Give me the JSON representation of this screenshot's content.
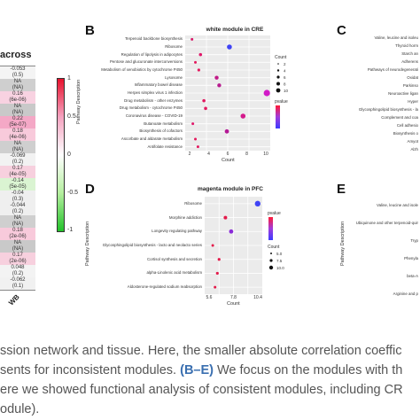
{
  "heatmap": {
    "title_fragment": "across",
    "column_label": "WB",
    "cells": [
      {
        "v": "-0.053",
        "c": "#f4f4f4"
      },
      {
        "v": "(0.5)",
        "c": "#f4f4f4"
      },
      {
        "v": "NA",
        "c": "#cfcfcf"
      },
      {
        "v": "(NA)",
        "c": "#cfcfcf"
      },
      {
        "v": "0.16",
        "c": "#f8d2e1"
      },
      {
        "v": "(6e-06)",
        "c": "#f8d2e1"
      },
      {
        "v": "NA",
        "c": "#c9c9c9"
      },
      {
        "v": "(NA)",
        "c": "#c9c9c9"
      },
      {
        "v": "0.22",
        "c": "#f4a8c6"
      },
      {
        "v": "(5e-07)",
        "c": "#f4a8c6"
      },
      {
        "v": "0.18",
        "c": "#f8cadb"
      },
      {
        "v": "(4e-06)",
        "c": "#f8cadb"
      },
      {
        "v": "NA",
        "c": "#cfcfcf"
      },
      {
        "v": "(NA)",
        "c": "#cfcfcf"
      },
      {
        "v": "-0.069",
        "c": "#f2f2f2"
      },
      {
        "v": "(0.2)",
        "c": "#f2f2f2"
      },
      {
        "v": "0.17",
        "c": "#f7d0de"
      },
      {
        "v": "(4e-05)",
        "c": "#f7d0de"
      },
      {
        "v": "-0.14",
        "c": "#daf4d2"
      },
      {
        "v": "(5e-05)",
        "c": "#daf4d2"
      },
      {
        "v": "-0.04",
        "c": "#efefef"
      },
      {
        "v": "(0.3)",
        "c": "#efefef"
      },
      {
        "v": "-0.044",
        "c": "#efefef"
      },
      {
        "v": "(0.2)",
        "c": "#efefef"
      },
      {
        "v": "NA",
        "c": "#cfcfcf"
      },
      {
        "v": "(NA)",
        "c": "#cfcfcf"
      },
      {
        "v": "0.18",
        "c": "#f8cadb"
      },
      {
        "v": "(2e-06)",
        "c": "#f8cadb"
      },
      {
        "v": "NA",
        "c": "#c9c9c9"
      },
      {
        "v": "(NA)",
        "c": "#c9c9c9"
      },
      {
        "v": "0.17",
        "c": "#f7d0de"
      },
      {
        "v": "(2e-06)",
        "c": "#f7d0de"
      },
      {
        "v": "0.048",
        "c": "#f3f3f3"
      },
      {
        "v": "(0.2)",
        "c": "#f3f3f3"
      },
      {
        "v": "-0.062",
        "c": "#f1f1f1"
      },
      {
        "v": "(0.1)",
        "c": "#f1f1f1"
      }
    ],
    "legend_ticks": [
      "1",
      "0.5",
      "0",
      "-0.5",
      "-1"
    ]
  },
  "panels": {
    "B": "B",
    "C": "C",
    "D": "D",
    "E": "E"
  },
  "panel_b": {
    "title": "white module in CRE",
    "ylabel": "Pathway Description",
    "xlabel": "Count",
    "pathways": [
      "Terpenoid backbone biosynthesis",
      "Ribosome",
      "Regulation of lipolysis in adipocytes",
      "Pentose and glucuronate interconversions",
      "Metabolism of xenobiotics by cytochrome P450",
      "Lysosome",
      "Inflammatory bowel disease",
      "Herpes simplex virus 1 infection",
      "Drug metabolism - other enzymes",
      "Drug metabolism - cytochrome P450",
      "Coronavirus disease - COVID-19",
      "Butanoate metabolism",
      "Biosynthesis of cofactors",
      "Ascorbate and aldarate metabolism",
      "Antifolate resistance"
    ],
    "xticks": [
      "2",
      "4",
      "6",
      "8",
      "10"
    ],
    "legend_count_title": "Count",
    "legend_count": [
      "2",
      "4",
      "6",
      "8",
      "10"
    ],
    "legend_pvalue_title": "pvalue"
  },
  "panel_d": {
    "title": "magenta module in PFC",
    "ylabel": "Pathway Description",
    "xlabel": "Count",
    "pathways": [
      "Ribosome",
      "Morphine addiction",
      "Longevity regulating pathway",
      "Glycosphingolipid biosynthesis - lacto and neolacto series",
      "Cortisol synthesis and secretion",
      "alpha-Linolenic acid metabolism",
      "Aldosterone-regulated sodium reabsorption"
    ],
    "xticks": [
      "5.6",
      "7.8",
      "10.4"
    ],
    "legend_pvalue_title": "pvalue",
    "legend_count_title": "Count",
    "legend_count": [
      "5.0",
      "7.5",
      "10.0"
    ]
  },
  "panel_c": {
    "pathways": [
      "Valine, leucine and isoleu",
      "Thyroid horm",
      "Starch an",
      "Adherens",
      "Pathways of neurodegenerati",
      "Oxidat",
      "Parkinso",
      "Neuroactive ligan",
      "Hyper",
      "Glycosphingolipid biosynthesis - la",
      "Complement and coa",
      "Cell adhesio",
      "Biosynthesis o",
      "Amyot",
      "Alzh"
    ]
  },
  "panel_e": {
    "ylabel": "Pathway Description",
    "pathways": [
      "Valine, leucine and isole",
      "Ubiquinone and other terpenoid-quir",
      "Tryp",
      "Phenyla",
      "beta-A",
      "Arginine and p"
    ]
  },
  "caption": {
    "line1": "ssion network and tissue. Here, the smaller absolute correlation coeffic",
    "line2_a": "sents for inconsistent modules. ",
    "line2_b": "(B–E)",
    "line2_c": " We focus on the modules with th",
    "line3": "ere we showed functional analysis of consistent modules, including CR",
    "line4": "odule)."
  }
}
